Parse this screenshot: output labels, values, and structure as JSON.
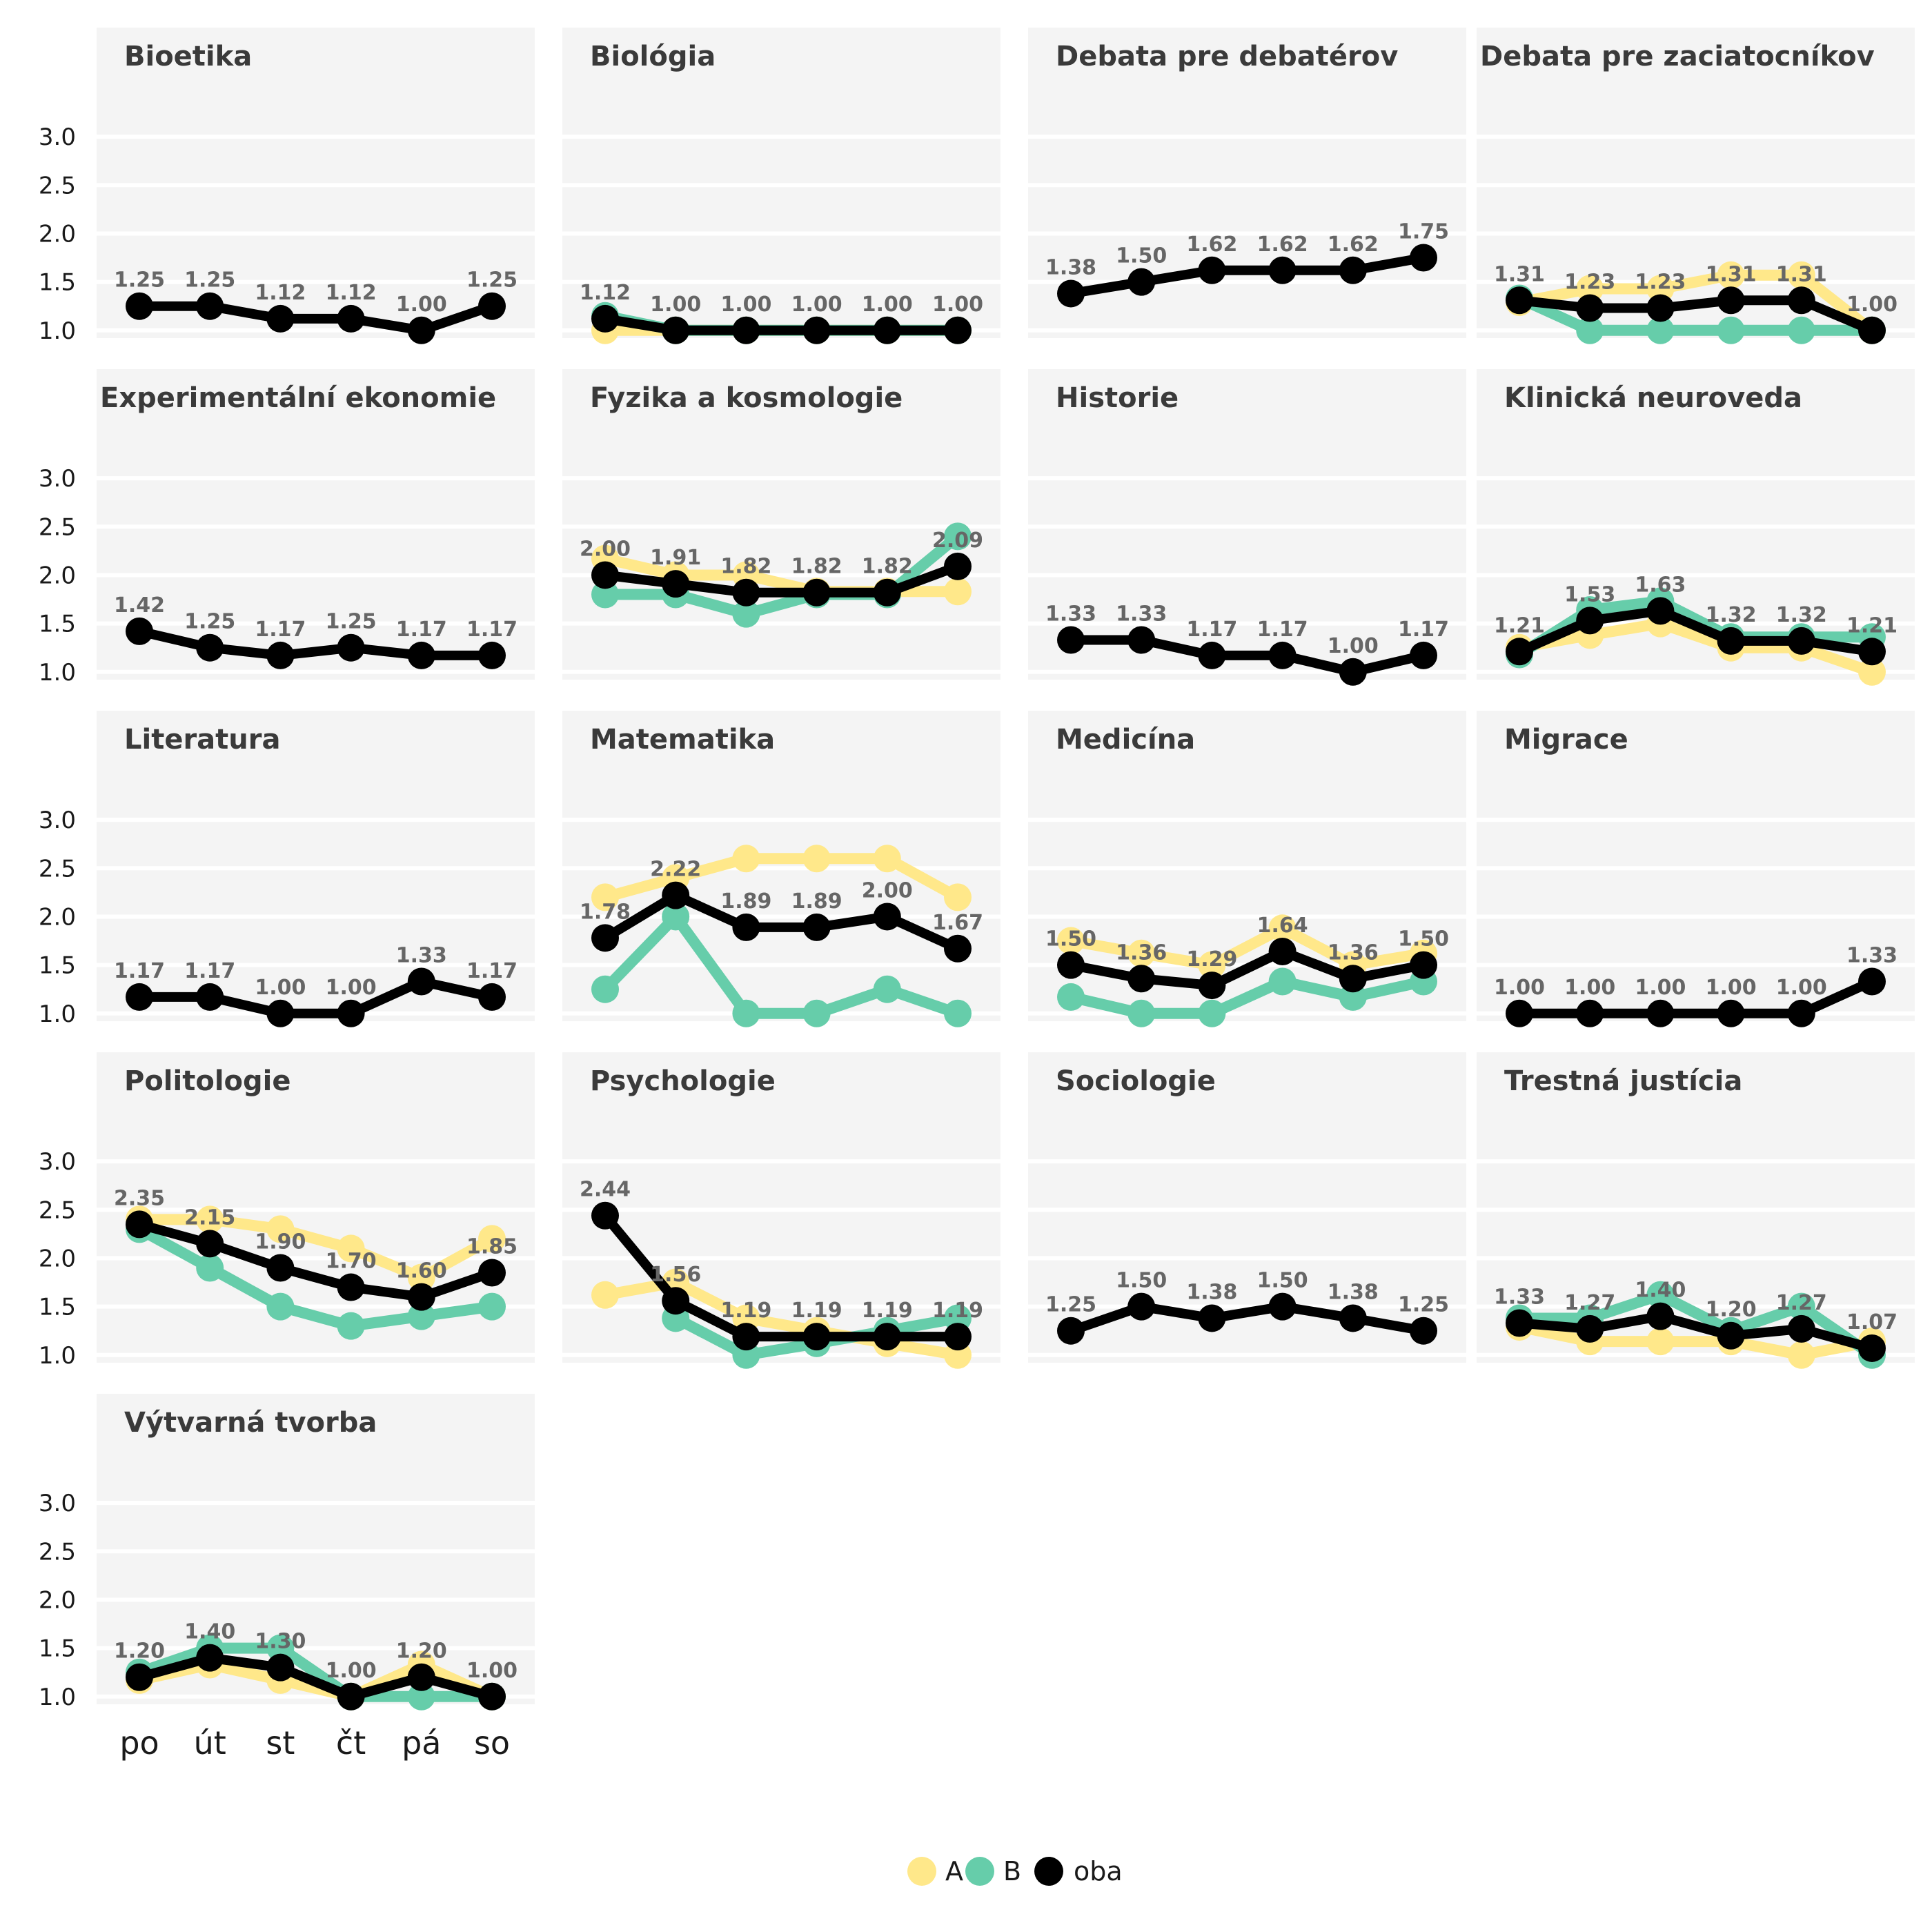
{
  "chart_data": {
    "type": "line",
    "x": [
      "po",
      "út",
      "st",
      "čt",
      "pá",
      "so"
    ],
    "ylim": [
      0.92,
      3.45
    ],
    "yticks": [
      "1.0",
      "1.5",
      "2.0",
      "2.5",
      "3.0"
    ],
    "grid": true,
    "legend_position": "bottom",
    "colors": {
      "A": "#ffe88a",
      "B": "#66cdaa",
      "oba": "#000000"
    },
    "series_names": [
      "A",
      "B",
      "oba"
    ],
    "panels": [
      {
        "title": "Bioetika",
        "series": [
          {
            "name": "oba",
            "values": [
              1.25,
              1.25,
              1.12,
              1.12,
              1.0,
              1.25
            ]
          }
        ],
        "labels": [
          "1.25",
          "1.25",
          "1.12",
          "1.12",
          "1.00",
          "1.25"
        ]
      },
      {
        "title": "Biológia",
        "series": [
          {
            "name": "A",
            "values": [
              1.0,
              1.0,
              1.0,
              1.0,
              1.0,
              1.0
            ]
          },
          {
            "name": "B",
            "values": [
              1.15,
              1.0,
              1.0,
              1.0,
              1.0,
              1.0
            ]
          },
          {
            "name": "oba",
            "values": [
              1.12,
              1.0,
              1.0,
              1.0,
              1.0,
              1.0
            ]
          }
        ],
        "labels": [
          "1.12",
          "1.00",
          "1.00",
          "1.00",
          "1.00",
          "1.00"
        ]
      },
      {
        "title": "Debata pre debatérov",
        "series": [
          {
            "name": "oba",
            "values": [
              1.38,
              1.5,
              1.62,
              1.62,
              1.62,
              1.75
            ]
          }
        ],
        "labels": [
          "1.38",
          "1.50",
          "1.62",
          "1.62",
          "1.62",
          "1.75"
        ]
      },
      {
        "title": "Debata pre zaciatocníkov",
        "series": [
          {
            "name": "A",
            "values": [
              1.29,
              1.43,
              1.43,
              1.57,
              1.57,
              1.0
            ]
          },
          {
            "name": "B",
            "values": [
              1.33,
              1.0,
              1.0,
              1.0,
              1.0,
              1.0
            ]
          },
          {
            "name": "oba",
            "values": [
              1.31,
              1.23,
              1.23,
              1.31,
              1.31,
              1.0
            ]
          }
        ],
        "labels": [
          "1.31",
          "1.23",
          "1.23",
          "1.31",
          "1.31",
          "1.00"
        ]
      },
      {
        "title": "Experimentální ekonomie",
        "series": [
          {
            "name": "oba",
            "values": [
              1.42,
              1.25,
              1.17,
              1.25,
              1.17,
              1.17
            ]
          }
        ],
        "labels": [
          "1.42",
          "1.25",
          "1.17",
          "1.25",
          "1.17",
          "1.17"
        ]
      },
      {
        "title": "Fyzika a kosmologie",
        "series": [
          {
            "name": "A",
            "values": [
              2.17,
              2.0,
              2.0,
              1.83,
              1.83,
              1.83
            ]
          },
          {
            "name": "B",
            "values": [
              1.8,
              1.8,
              1.6,
              1.8,
              1.8,
              2.4
            ]
          },
          {
            "name": "oba",
            "values": [
              2.0,
              1.91,
              1.82,
              1.82,
              1.82,
              2.09
            ]
          }
        ],
        "labels": [
          "2.00",
          "1.91",
          "1.82",
          "1.82",
          "1.82",
          "2.09"
        ]
      },
      {
        "title": "Historie",
        "series": [
          {
            "name": "oba",
            "values": [
              1.33,
              1.33,
              1.17,
              1.17,
              1.0,
              1.17
            ]
          }
        ],
        "labels": [
          "1.33",
          "1.33",
          "1.17",
          "1.17",
          "1.00",
          "1.17"
        ]
      },
      {
        "title": "Klinická neuroveda",
        "series": [
          {
            "name": "A",
            "values": [
              1.25,
              1.38,
              1.5,
              1.25,
              1.25,
              1.0
            ]
          },
          {
            "name": "B",
            "values": [
              1.18,
              1.64,
              1.73,
              1.36,
              1.36,
              1.36
            ]
          },
          {
            "name": "oba",
            "values": [
              1.21,
              1.53,
              1.63,
              1.32,
              1.32,
              1.21
            ]
          }
        ],
        "labels": [
          "1.21",
          "1.53",
          "1.63",
          "1.32",
          "1.32",
          "1.21"
        ]
      },
      {
        "title": "Literatura",
        "series": [
          {
            "name": "oba",
            "values": [
              1.17,
              1.17,
              1.0,
              1.0,
              1.33,
              1.17
            ]
          }
        ],
        "labels": [
          "1.17",
          "1.17",
          "1.00",
          "1.00",
          "1.33",
          "1.17"
        ]
      },
      {
        "title": "Matematika",
        "series": [
          {
            "name": "A",
            "values": [
              2.2,
              2.4,
              2.6,
              2.6,
              2.6,
              2.2
            ]
          },
          {
            "name": "B",
            "values": [
              1.25,
              2.0,
              1.0,
              1.0,
              1.25,
              1.0
            ]
          },
          {
            "name": "oba",
            "values": [
              1.78,
              2.22,
              1.89,
              1.89,
              2.0,
              1.67
            ]
          }
        ],
        "labels": [
          "1.78",
          "2.22",
          "1.89",
          "1.89",
          "2.00",
          "1.67"
        ]
      },
      {
        "title": "Medicína",
        "series": [
          {
            "name": "A",
            "values": [
              1.75,
              1.62,
              1.5,
              1.88,
              1.5,
              1.62
            ]
          },
          {
            "name": "B",
            "values": [
              1.17,
              1.0,
              1.0,
              1.33,
              1.17,
              1.33
            ]
          },
          {
            "name": "oba",
            "values": [
              1.5,
              1.36,
              1.29,
              1.64,
              1.36,
              1.5
            ]
          }
        ],
        "labels": [
          "1.50",
          "1.36",
          "1.29",
          "1.64",
          "1.36",
          "1.50"
        ]
      },
      {
        "title": "Migrace",
        "series": [
          {
            "name": "oba",
            "values": [
              1.0,
              1.0,
              1.0,
              1.0,
              1.0,
              1.33
            ]
          }
        ],
        "labels": [
          "1.00",
          "1.00",
          "1.00",
          "1.00",
          "1.00",
          "1.33"
        ]
      },
      {
        "title": "Politologie",
        "series": [
          {
            "name": "A",
            "values": [
              2.4,
              2.4,
              2.3,
              2.1,
              1.8,
              2.2
            ]
          },
          {
            "name": "B",
            "values": [
              2.3,
              1.9,
              1.5,
              1.3,
              1.4,
              1.5
            ]
          },
          {
            "name": "oba",
            "values": [
              2.35,
              2.15,
              1.9,
              1.7,
              1.6,
              1.85
            ]
          }
        ],
        "labels": [
          "2.35",
          "2.15",
          "1.90",
          "1.70",
          "1.60",
          "1.85"
        ]
      },
      {
        "title": "Psychologie",
        "series": [
          {
            "name": "A",
            "values": [
              1.62,
              1.75,
              1.38,
              1.25,
              1.12,
              1.0
            ]
          },
          {
            "name": "B",
            "values": [
              null,
              1.38,
              1.0,
              1.12,
              1.25,
              1.38
            ]
          },
          {
            "name": "oba",
            "values": [
              2.44,
              1.56,
              1.19,
              1.19,
              1.19,
              1.19
            ]
          }
        ],
        "labels": [
          "2.44",
          "1.56",
          "1.19",
          "1.19",
          "1.19",
          "1.19"
        ]
      },
      {
        "title": "Sociologie",
        "series": [
          {
            "name": "oba",
            "values": [
              1.25,
              1.5,
              1.38,
              1.5,
              1.38,
              1.25
            ]
          }
        ],
        "labels": [
          "1.25",
          "1.50",
          "1.38",
          "1.50",
          "1.38",
          "1.25"
        ]
      },
      {
        "title": "Trestná justícia",
        "series": [
          {
            "name": "A",
            "values": [
              1.29,
              1.14,
              1.14,
              1.14,
              1.0,
              1.14
            ]
          },
          {
            "name": "B",
            "values": [
              1.38,
              1.38,
              1.62,
              1.25,
              1.5,
              1.0
            ]
          },
          {
            "name": "oba",
            "values": [
              1.33,
              1.27,
              1.4,
              1.2,
              1.27,
              1.07
            ]
          }
        ],
        "labels": [
          "1.33",
          "1.27",
          "1.40",
          "1.20",
          "1.27",
          "1.07"
        ]
      },
      {
        "title": "Výtvarná tvorba",
        "series": [
          {
            "name": "A",
            "values": [
              1.17,
              1.33,
              1.17,
              1.0,
              1.33,
              1.0
            ]
          },
          {
            "name": "B",
            "values": [
              1.25,
              1.5,
              1.5,
              1.0,
              1.0,
              1.0
            ]
          },
          {
            "name": "oba",
            "values": [
              1.2,
              1.4,
              1.3,
              1.0,
              1.2,
              1.0
            ]
          }
        ],
        "labels": [
          "1.20",
          "1.40",
          "1.30",
          "1.00",
          "1.20",
          "1.00"
        ]
      }
    ]
  }
}
